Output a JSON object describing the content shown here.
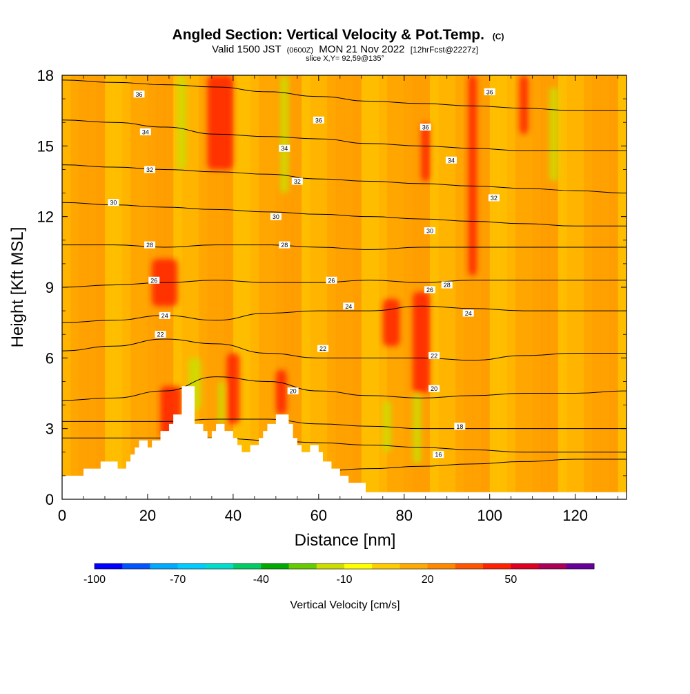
{
  "chart_data": {
    "type": "heatmap",
    "title": "Angled Section: Vertical Velocity & Pot.Temp.",
    "title_suffix": "(C)",
    "subtitle": {
      "valid": "Valid 1500 JST",
      "zulu": "(0600Z)",
      "date": "MON 21 Nov 2022",
      "forecast": "[12hrFcst@2227z]"
    },
    "slice_label": "slice X,Y= 92,59@135°",
    "xlabel": "Distance [nm]",
    "ylabel": "Height [Kft MSL]",
    "xlim": [
      0,
      132
    ],
    "ylim": [
      0,
      18
    ],
    "x_ticks": [
      "0",
      "20",
      "40",
      "60",
      "80",
      "100",
      "120"
    ],
    "y_ticks": [
      "0",
      "3",
      "6",
      "9",
      "12",
      "15",
      "18"
    ],
    "colorbar": {
      "label": "Vertical Velocity [cm/s]",
      "tick_labels": [
        "-100",
        "-70",
        "-40",
        "-10",
        "20",
        "50"
      ],
      "colors": [
        "#0000ff",
        "#0055ff",
        "#00aaff",
        "#00ccff",
        "#00ddcc",
        "#00cc66",
        "#00aa00",
        "#66cc00",
        "#ccdd00",
        "#ffff00",
        "#ffcc00",
        "#ffaa00",
        "#ff8800",
        "#ff5500",
        "#ff2200",
        "#dd0022",
        "#aa0055",
        "#660099"
      ]
    },
    "background_color": "#ffaa00",
    "updraft_color": "#ff2200",
    "downdraft_color": "#ccdd00",
    "isentropes": [
      {
        "theta": "16",
        "heights": [
          0.9,
          0.9,
          0.9,
          1.0,
          1.1,
          1.2,
          1.3,
          1.4,
          1.5,
          1.6,
          1.7,
          1.7
        ]
      },
      {
        "theta": "18",
        "heights": [
          2.6,
          2.6,
          2.6,
          2.6,
          2.5,
          2.4,
          2.3,
          2.2,
          2.1,
          2.0,
          2.0,
          2.0
        ]
      },
      {
        "theta": "18",
        "heights": [
          3.3,
          3.3,
          3.3,
          3.4,
          3.4,
          3.2,
          3.1,
          3.0,
          3.0,
          3.0,
          3.0,
          3.0
        ]
      },
      {
        "theta": "20",
        "heights": [
          4.2,
          4.3,
          4.6,
          5.2,
          5.0,
          4.6,
          4.4,
          4.3,
          4.4,
          4.5,
          4.5,
          4.6
        ]
      },
      {
        "theta": "22",
        "heights": [
          6.3,
          6.5,
          6.8,
          6.6,
          6.2,
          6.0,
          6.0,
          6.0,
          5.9,
          6.1,
          6.2,
          6.2
        ]
      },
      {
        "theta": "24",
        "heights": [
          7.5,
          7.6,
          7.8,
          7.6,
          7.9,
          8.0,
          8.0,
          8.2,
          8.1,
          8.0,
          8.0,
          8.0
        ]
      },
      {
        "theta": "26",
        "heights": [
          9.0,
          9.1,
          9.2,
          9.3,
          9.2,
          9.2,
          9.3,
          9.2,
          9.3,
          9.3,
          9.3,
          9.3
        ]
      },
      {
        "theta": "28",
        "heights": [
          10.8,
          10.8,
          10.7,
          10.8,
          10.8,
          10.7,
          10.6,
          10.7,
          10.7,
          10.7,
          10.7,
          10.7
        ]
      },
      {
        "theta": "30",
        "heights": [
          12.6,
          12.5,
          12.4,
          12.3,
          12.2,
          12.1,
          12.0,
          11.9,
          11.8,
          11.7,
          11.6,
          11.6
        ]
      },
      {
        "theta": "32",
        "heights": [
          14.2,
          14.1,
          14.0,
          13.9,
          13.8,
          13.6,
          13.5,
          13.4,
          13.3,
          13.2,
          13.1,
          13.0
        ]
      },
      {
        "theta": "34",
        "heights": [
          16.1,
          16.0,
          15.8,
          15.5,
          15.4,
          15.3,
          15.1,
          15.0,
          14.9,
          14.8,
          14.8,
          14.8
        ]
      },
      {
        "theta": "36",
        "heights": [
          17.8,
          17.7,
          17.6,
          17.5,
          17.3,
          17.1,
          16.9,
          16.8,
          16.7,
          16.6,
          16.5,
          16.5
        ]
      }
    ],
    "isentrope_label_positions": [
      {
        "text": "36",
        "x": 18,
        "y": 17.2
      },
      {
        "text": "34",
        "x": 19.5,
        "y": 15.6
      },
      {
        "text": "32",
        "x": 20.5,
        "y": 14.0
      },
      {
        "text": "30",
        "x": 12,
        "y": 12.6
      },
      {
        "text": "28",
        "x": 20.5,
        "y": 10.8
      },
      {
        "text": "26",
        "x": 21.5,
        "y": 9.3
      },
      {
        "text": "24",
        "x": 24,
        "y": 7.8
      },
      {
        "text": "22",
        "x": 23,
        "y": 7.0
      },
      {
        "text": "36",
        "x": 60,
        "y": 16.1
      },
      {
        "text": "34",
        "x": 52,
        "y": 14.9
      },
      {
        "text": "32",
        "x": 55,
        "y": 13.5
      },
      {
        "text": "30",
        "x": 50,
        "y": 12.0
      },
      {
        "text": "28",
        "x": 52,
        "y": 10.8
      },
      {
        "text": "26",
        "x": 63,
        "y": 9.3
      },
      {
        "text": "24",
        "x": 67,
        "y": 8.2
      },
      {
        "text": "22",
        "x": 61,
        "y": 6.4
      },
      {
        "text": "20",
        "x": 54,
        "y": 4.6
      },
      {
        "text": "36",
        "x": 85,
        "y": 15.8
      },
      {
        "text": "34",
        "x": 91,
        "y": 14.4
      },
      {
        "text": "32",
        "x": 101,
        "y": 12.8
      },
      {
        "text": "30",
        "x": 86,
        "y": 11.4
      },
      {
        "text": "28",
        "x": 90,
        "y": 9.1
      },
      {
        "text": "26",
        "x": 86,
        "y": 8.9
      },
      {
        "text": "24",
        "x": 95,
        "y": 7.9
      },
      {
        "text": "22",
        "x": 87,
        "y": 6.1
      },
      {
        "text": "20",
        "x": 87,
        "y": 4.7
      },
      {
        "text": "18",
        "x": 93,
        "y": 3.1
      },
      {
        "text": "16",
        "x": 88,
        "y": 1.9
      },
      {
        "text": "36",
        "x": 100,
        "y": 17.3
      }
    ],
    "updraft_cells": [
      {
        "x": 37,
        "x0": 34,
        "x1": 40,
        "y0": 14.0,
        "y1": 18
      },
      {
        "x": 96,
        "x0": 95,
        "x1": 97,
        "y0": 9.5,
        "y1": 18
      },
      {
        "x": 84,
        "x0": 82,
        "x1": 86,
        "y0": 4.5,
        "y1": 8.8
      },
      {
        "x": 77,
        "x0": 75,
        "x1": 79,
        "y0": 6.5,
        "y1": 8.5
      },
      {
        "x": 24,
        "x0": 21,
        "x1": 27,
        "y0": 8.2,
        "y1": 10.2
      },
      {
        "x": 40,
        "x0": 38.5,
        "x1": 41.5,
        "y0": 3.2,
        "y1": 6.2
      },
      {
        "x": 26,
        "x0": 23,
        "x1": 28,
        "y0": 2.6,
        "y1": 4.8
      },
      {
        "x": 51,
        "x0": 50,
        "x1": 52.5,
        "y0": 3.6,
        "y1": 5.5
      },
      {
        "x": 108,
        "x0": 107,
        "x1": 109,
        "y0": 15.5,
        "y1": 18
      },
      {
        "x": 85,
        "x0": 84,
        "x1": 86,
        "y0": 13.5,
        "y1": 16
      }
    ],
    "downdraft_cells": [
      {
        "x": 31,
        "x0": 29.5,
        "x1": 32.5,
        "y0": 3.8,
        "y1": 6.0
      },
      {
        "x": 37,
        "x0": 36.5,
        "x1": 38,
        "y0": 3.2,
        "y1": 5.0
      },
      {
        "x": 76,
        "x0": 75,
        "x1": 77,
        "y0": 2.0,
        "y1": 4.2
      },
      {
        "x": 83,
        "x0": 82,
        "x1": 84,
        "y0": 1.5,
        "y1": 4.5
      },
      {
        "x": 52,
        "x0": 51,
        "x1": 53,
        "y0": 13.0,
        "y1": 18
      },
      {
        "x": 115,
        "x0": 114,
        "x1": 116,
        "y0": 13.5,
        "y1": 17.5
      },
      {
        "x": 28,
        "x0": 27,
        "x1": 29,
        "y0": 14.0,
        "y1": 18
      }
    ],
    "terrain_profile": [
      {
        "x": 0,
        "h": 1.0
      },
      {
        "x": 5,
        "h": 1.0
      },
      {
        "x": 5,
        "h": 1.3
      },
      {
        "x": 9,
        "h": 1.3
      },
      {
        "x": 9,
        "h": 1.6
      },
      {
        "x": 13,
        "h": 1.6
      },
      {
        "x": 13,
        "h": 1.3
      },
      {
        "x": 15,
        "h": 1.3
      },
      {
        "x": 15,
        "h": 1.6
      },
      {
        "x": 16,
        "h": 1.6
      },
      {
        "x": 16,
        "h": 1.9
      },
      {
        "x": 17,
        "h": 1.9
      },
      {
        "x": 17,
        "h": 2.2
      },
      {
        "x": 18,
        "h": 2.2
      },
      {
        "x": 18,
        "h": 2.5
      },
      {
        "x": 20,
        "h": 2.5
      },
      {
        "x": 20,
        "h": 2.2
      },
      {
        "x": 21,
        "h": 2.2
      },
      {
        "x": 21,
        "h": 2.5
      },
      {
        "x": 23,
        "h": 2.5
      },
      {
        "x": 23,
        "h": 2.9
      },
      {
        "x": 25,
        "h": 2.9
      },
      {
        "x": 25,
        "h": 3.2
      },
      {
        "x": 26,
        "h": 3.2
      },
      {
        "x": 26,
        "h": 3.6
      },
      {
        "x": 28,
        "h": 3.6
      },
      {
        "x": 28,
        "h": 4.8
      },
      {
        "x": 31,
        "h": 4.8
      },
      {
        "x": 31,
        "h": 3.2
      },
      {
        "x": 33,
        "h": 3.2
      },
      {
        "x": 33,
        "h": 2.9
      },
      {
        "x": 34,
        "h": 2.9
      },
      {
        "x": 34,
        "h": 2.6
      },
      {
        "x": 35,
        "h": 2.6
      },
      {
        "x": 35,
        "h": 2.9
      },
      {
        "x": 36,
        "h": 2.9
      },
      {
        "x": 36,
        "h": 3.2
      },
      {
        "x": 38,
        "h": 3.2
      },
      {
        "x": 38,
        "h": 2.9
      },
      {
        "x": 40,
        "h": 2.9
      },
      {
        "x": 40,
        "h": 2.6
      },
      {
        "x": 41,
        "h": 2.6
      },
      {
        "x": 41,
        "h": 2.3
      },
      {
        "x": 42,
        "h": 2.3
      },
      {
        "x": 42,
        "h": 2.0
      },
      {
        "x": 44,
        "h": 2.0
      },
      {
        "x": 44,
        "h": 2.3
      },
      {
        "x": 46,
        "h": 2.3
      },
      {
        "x": 46,
        "h": 2.6
      },
      {
        "x": 47,
        "h": 2.6
      },
      {
        "x": 47,
        "h": 2.9
      },
      {
        "x": 48,
        "h": 2.9
      },
      {
        "x": 48,
        "h": 3.2
      },
      {
        "x": 50,
        "h": 3.2
      },
      {
        "x": 50,
        "h": 3.6
      },
      {
        "x": 53,
        "h": 3.6
      },
      {
        "x": 53,
        "h": 3.2
      },
      {
        "x": 54,
        "h": 3.2
      },
      {
        "x": 54,
        "h": 2.6
      },
      {
        "x": 55,
        "h": 2.6
      },
      {
        "x": 55,
        "h": 2.3
      },
      {
        "x": 56,
        "h": 2.3
      },
      {
        "x": 56,
        "h": 2.0
      },
      {
        "x": 58,
        "h": 2.0
      },
      {
        "x": 58,
        "h": 2.3
      },
      {
        "x": 60,
        "h": 2.3
      },
      {
        "x": 60,
        "h": 2.0
      },
      {
        "x": 61,
        "h": 2.0
      },
      {
        "x": 61,
        "h": 1.6
      },
      {
        "x": 63,
        "h": 1.6
      },
      {
        "x": 63,
        "h": 1.3
      },
      {
        "x": 65,
        "h": 1.3
      },
      {
        "x": 65,
        "h": 1.0
      },
      {
        "x": 67,
        "h": 1.0
      },
      {
        "x": 67,
        "h": 0.7
      },
      {
        "x": 71,
        "h": 0.7
      },
      {
        "x": 71,
        "h": 0.3
      },
      {
        "x": 132,
        "h": 0.3
      }
    ]
  }
}
